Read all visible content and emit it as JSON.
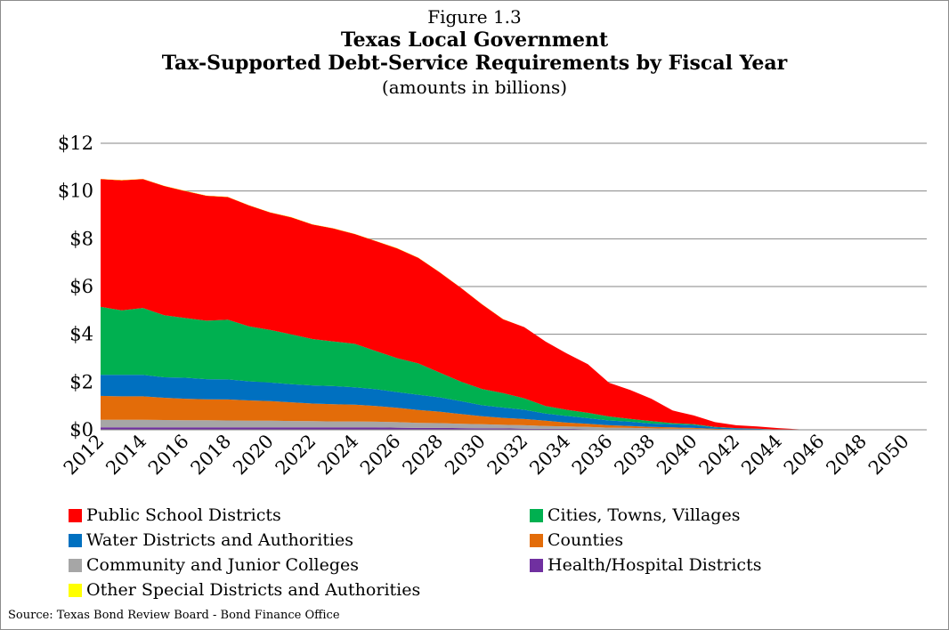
{
  "chart_data": {
    "type": "area",
    "stacked": true,
    "title_lines": [
      "Figure 1.3",
      "Texas Local Government",
      "Tax-Supported Debt-Service Requirements by Fiscal Year",
      "(amounts in billions)"
    ],
    "source": "Source: Texas Bond Review Board - Bond Finance Office",
    "ylim": [
      0,
      12
    ],
    "y_ticks": [
      "$0",
      "$2",
      "$4",
      "$6",
      "$8",
      "$10",
      "$12"
    ],
    "x_tick_labels": [
      "2012",
      "2014",
      "2016",
      "2018",
      "2020",
      "2022",
      "2024",
      "2026",
      "2028",
      "2030",
      "2032",
      "2034",
      "2036",
      "2038",
      "2040",
      "2042",
      "2044",
      "2046",
      "2048",
      "2050"
    ],
    "x": [
      2012,
      2013,
      2014,
      2015,
      2016,
      2017,
      2018,
      2019,
      2020,
      2021,
      2022,
      2023,
      2024,
      2025,
      2026,
      2027,
      2028,
      2029,
      2030,
      2031,
      2032,
      2033,
      2034,
      2035,
      2036,
      2037,
      2038,
      2039,
      2040,
      2041,
      2042,
      2043,
      2044,
      2045,
      2046,
      2047,
      2048,
      2049,
      2050,
      2051
    ],
    "grid": true,
    "legend_position": "bottom",
    "series": [
      {
        "name": "Health/Hospital Districts",
        "color": "#7030a0",
        "values": [
          0.1,
          0.1,
          0.1,
          0.1,
          0.1,
          0.1,
          0.1,
          0.1,
          0.1,
          0.1,
          0.1,
          0.1,
          0.1,
          0.1,
          0.09,
          0.08,
          0.08,
          0.07,
          0.06,
          0.06,
          0.05,
          0.04,
          0.04,
          0.03,
          0.02,
          0.02,
          0.01,
          0.01,
          0.01,
          0,
          0,
          0,
          0,
          0,
          0,
          0,
          0,
          0,
          0,
          0
        ]
      },
      {
        "name": "Community and Junior Colleges",
        "color": "#a6a6a6",
        "values": [
          0.32,
          0.32,
          0.32,
          0.31,
          0.3,
          0.3,
          0.29,
          0.28,
          0.28,
          0.27,
          0.26,
          0.25,
          0.25,
          0.24,
          0.23,
          0.21,
          0.2,
          0.18,
          0.17,
          0.15,
          0.14,
          0.12,
          0.1,
          0.09,
          0.07,
          0.06,
          0.05,
          0.04,
          0.03,
          0.02,
          0.01,
          0.01,
          0,
          0,
          0,
          0,
          0,
          0,
          0,
          0
        ]
      },
      {
        "name": "Counties",
        "color": "#e36c09",
        "values": [
          1.0,
          0.98,
          0.98,
          0.93,
          0.9,
          0.88,
          0.88,
          0.85,
          0.82,
          0.78,
          0.74,
          0.72,
          0.7,
          0.66,
          0.6,
          0.54,
          0.48,
          0.41,
          0.34,
          0.29,
          0.26,
          0.22,
          0.16,
          0.13,
          0.1,
          0.08,
          0.06,
          0.05,
          0.04,
          0.02,
          0.01,
          0.01,
          0,
          0,
          0,
          0,
          0,
          0,
          0,
          0
        ]
      },
      {
        "name": "Water Districts and Authorities",
        "color": "#0070c0",
        "values": [
          0.88,
          0.9,
          0.9,
          0.86,
          0.88,
          0.84,
          0.84,
          0.8,
          0.78,
          0.76,
          0.76,
          0.76,
          0.73,
          0.7,
          0.66,
          0.64,
          0.6,
          0.54,
          0.46,
          0.43,
          0.39,
          0.3,
          0.28,
          0.24,
          0.2,
          0.18,
          0.14,
          0.13,
          0.12,
          0.06,
          0.04,
          0.02,
          0.01,
          0,
          0,
          0,
          0,
          0,
          0,
          0
        ]
      },
      {
        "name": "Cities, Towns, Villages",
        "color": "#00b050",
        "values": [
          2.85,
          2.7,
          2.8,
          2.6,
          2.5,
          2.45,
          2.5,
          2.3,
          2.2,
          2.09,
          1.94,
          1.87,
          1.82,
          1.6,
          1.42,
          1.31,
          1.04,
          0.82,
          0.68,
          0.61,
          0.48,
          0.32,
          0.26,
          0.22,
          0.17,
          0.12,
          0.1,
          0.05,
          0.04,
          0.02,
          0.01,
          0.01,
          0,
          0,
          0,
          0,
          0,
          0,
          0,
          0
        ]
      },
      {
        "name": "Public School Districts",
        "color": "#ff0000",
        "values": [
          5.35,
          5.45,
          5.4,
          5.41,
          5.32,
          5.23,
          5.14,
          5.07,
          4.92,
          4.9,
          4.8,
          4.73,
          4.6,
          4.6,
          4.6,
          4.42,
          4.2,
          3.93,
          3.55,
          3.09,
          2.98,
          2.7,
          2.36,
          2.04,
          1.41,
          1.21,
          0.94,
          0.53,
          0.36,
          0.2,
          0.12,
          0.09,
          0.06,
          0.02,
          0.01,
          0.01,
          0,
          0,
          0,
          0
        ]
      },
      {
        "name": "Other Special Districts and Authorities",
        "color": "#ffff00",
        "values": [
          0.01,
          0.01,
          0.01,
          0.01,
          0.01,
          0.01,
          0.01,
          0.01,
          0.01,
          0.01,
          0.01,
          0.01,
          0.01,
          0.01,
          0.01,
          0.01,
          0.01,
          0.01,
          0.01,
          0.01,
          0,
          0,
          0,
          0,
          0,
          0,
          0,
          0,
          0,
          0,
          0,
          0,
          0,
          0,
          0,
          0,
          0,
          0,
          0,
          0
        ]
      }
    ],
    "legend_order": [
      "Public School Districts",
      "Cities, Towns, Villages",
      "Water Districts and Authorities",
      "Counties",
      "Community and Junior Colleges",
      "Health/Hospital Districts",
      "Other Special Districts and Authorities"
    ]
  }
}
